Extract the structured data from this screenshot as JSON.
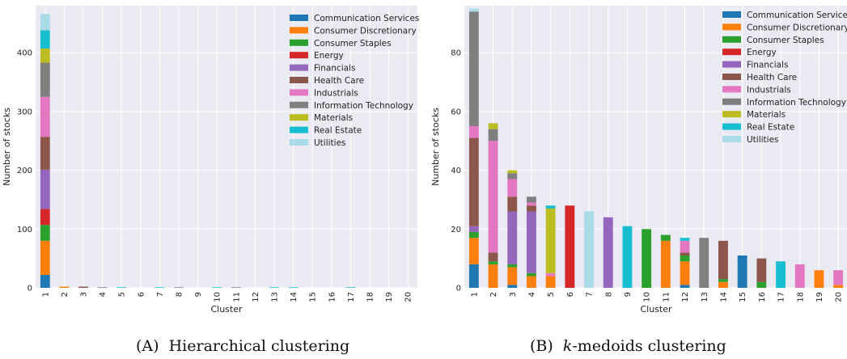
{
  "colors": {
    "Communication Services": "#1f77b4",
    "Consumer Discretionary": "#ff7f0e",
    "Consumer Staples": "#2ca02c",
    "Energy": "#d62728",
    "Financials": "#9467bd",
    "Health Care": "#8c564b",
    "Industrials": "#e377c2",
    "Information Technology": "#7f7f7f",
    "Materials": "#bcbd22",
    "Real Estate": "#17becf",
    "Utilities": "#aadbe9"
  },
  "captions": {
    "a_prefix": "(A)",
    "a_text": "Hierarchical clustering",
    "b_prefix": "(B)",
    "b_k": "k",
    "b_text": "-medoids clustering"
  },
  "chart_data": [
    {
      "type": "bar",
      "stacked": true,
      "xlabel": "Cluster",
      "ylabel": "Number of stocks",
      "ylim": [
        0,
        480
      ],
      "yticks": [
        0,
        100,
        200,
        300,
        400
      ],
      "grid": true,
      "legend_position": "top-right",
      "categories": [
        "1",
        "2",
        "3",
        "4",
        "5",
        "6",
        "7",
        "8",
        "9",
        "10",
        "11",
        "12",
        "13",
        "14",
        "15",
        "16",
        "17",
        "18",
        "19",
        "20"
      ],
      "series": [
        {
          "name": "Communication Services",
          "values": [
            22,
            0,
            0,
            0,
            0,
            0,
            0,
            0,
            0,
            0,
            0,
            0,
            0,
            0,
            0,
            0,
            0,
            0,
            0,
            0
          ]
        },
        {
          "name": "Consumer Discretionary",
          "values": [
            58,
            2,
            0,
            0,
            0,
            0,
            0,
            0,
            0,
            0,
            0,
            0,
            0,
            0,
            0,
            0,
            0,
            0,
            0,
            0
          ]
        },
        {
          "name": "Consumer Staples",
          "values": [
            27,
            0,
            0,
            0,
            0,
            0,
            0,
            0,
            0,
            0,
            0,
            0,
            0,
            0,
            0,
            0,
            0,
            0,
            0,
            0
          ]
        },
        {
          "name": "Energy",
          "values": [
            27,
            0,
            0,
            0,
            0,
            0,
            0,
            0,
            0,
            0,
            0,
            0,
            0,
            0,
            0,
            0,
            0,
            0,
            0,
            0
          ]
        },
        {
          "name": "Financials",
          "values": [
            67,
            0,
            0,
            0,
            0,
            0,
            0,
            0,
            0,
            0,
            0,
            0,
            0,
            0,
            0,
            0,
            0,
            0,
            0,
            0
          ]
        },
        {
          "name": "Health Care",
          "values": [
            56,
            0,
            2,
            0,
            0,
            0,
            0,
            0,
            0,
            0,
            0,
            0,
            0,
            0,
            0,
            0,
            0,
            0,
            0,
            0
          ]
        },
        {
          "name": "Industrials",
          "values": [
            68,
            0,
            0,
            0,
            0,
            0,
            0,
            0,
            0,
            0,
            0,
            0,
            0,
            0,
            0,
            0,
            0,
            0,
            0,
            0
          ]
        },
        {
          "name": "Information Technology",
          "values": [
            58,
            0,
            0,
            1,
            0,
            0,
            0,
            1,
            0,
            0,
            1,
            0,
            0,
            0,
            0,
            0,
            0,
            0,
            0,
            0
          ]
        },
        {
          "name": "Materials",
          "values": [
            24,
            0,
            0,
            0,
            0,
            0,
            0,
            0,
            0,
            0,
            0,
            0,
            0,
            0,
            0,
            0,
            0,
            0,
            0,
            0
          ]
        },
        {
          "name": "Real Estate",
          "values": [
            31,
            0,
            0,
            0,
            1,
            0,
            1,
            0,
            0,
            1,
            0,
            0,
            1,
            1,
            0,
            0,
            1,
            0,
            0,
            0
          ]
        },
        {
          "name": "Utilities",
          "values": [
            28,
            0,
            0,
            0,
            0,
            0,
            0,
            0,
            0,
            0,
            0,
            0,
            0,
            0,
            0,
            0,
            0,
            0,
            0,
            0
          ]
        }
      ]
    },
    {
      "type": "bar",
      "stacked": true,
      "xlabel": "Cluster",
      "ylabel": "Number of stocks",
      "ylim": [
        0,
        96
      ],
      "yticks": [
        0,
        20,
        40,
        60,
        80
      ],
      "grid": true,
      "legend_position": "top-right",
      "categories": [
        "1",
        "2",
        "3",
        "4",
        "5",
        "6",
        "7",
        "8",
        "9",
        "10",
        "11",
        "12",
        "13",
        "14",
        "15",
        "16",
        "17",
        "18",
        "19",
        "20"
      ],
      "series": [
        {
          "name": "Communication Services",
          "values": [
            8,
            0,
            1,
            0,
            0,
            0,
            0,
            0,
            0,
            0,
            0,
            1,
            0,
            0,
            11,
            0,
            0,
            0,
            0,
            0
          ]
        },
        {
          "name": "Consumer Discretionary",
          "values": [
            9,
            8,
            6,
            4,
            4,
            0,
            0,
            0,
            0,
            0,
            16,
            8,
            0,
            2,
            0,
            0,
            0,
            0,
            6,
            1
          ]
        },
        {
          "name": "Consumer Staples",
          "values": [
            2,
            1,
            1,
            1,
            0,
            0,
            0,
            0,
            0,
            20,
            2,
            2,
            0,
            1,
            0,
            2,
            0,
            0,
            0,
            0
          ]
        },
        {
          "name": "Energy",
          "values": [
            0,
            0,
            0,
            0,
            0,
            28,
            0,
            0,
            0,
            0,
            0,
            0,
            0,
            0,
            0,
            0,
            0,
            0,
            0,
            0
          ]
        },
        {
          "name": "Financials",
          "values": [
            2,
            0,
            18,
            21,
            0,
            0,
            0,
            24,
            0,
            0,
            0,
            0,
            0,
            0,
            0,
            0,
            0,
            0,
            0,
            0
          ]
        },
        {
          "name": "Health Care",
          "values": [
            30,
            3,
            5,
            2,
            0,
            0,
            0,
            0,
            0,
            0,
            0,
            1,
            0,
            13,
            0,
            8,
            0,
            0,
            0,
            0
          ]
        },
        {
          "name": "Industrials",
          "values": [
            4,
            38,
            6,
            1,
            1,
            0,
            0,
            0,
            0,
            0,
            0,
            4,
            0,
            0,
            0,
            0,
            0,
            8,
            0,
            5
          ]
        },
        {
          "name": "Information Technology",
          "values": [
            39,
            4,
            2,
            2,
            0,
            0,
            0,
            0,
            0,
            0,
            0,
            0,
            17,
            0,
            0,
            0,
            0,
            0,
            0,
            0
          ]
        },
        {
          "name": "Materials",
          "values": [
            0,
            2,
            1,
            0,
            22,
            0,
            0,
            0,
            0,
            0,
            0,
            0,
            0,
            0,
            0,
            0,
            0,
            0,
            0,
            0
          ]
        },
        {
          "name": "Real Estate",
          "values": [
            0,
            0,
            0,
            0,
            1,
            0,
            0,
            0,
            21,
            0,
            0,
            1,
            0,
            0,
            0,
            0,
            9,
            0,
            0,
            0
          ]
        },
        {
          "name": "Utilities",
          "values": [
            1,
            0,
            0,
            0,
            0,
            0,
            26,
            0,
            0,
            0,
            0,
            0,
            0,
            0,
            0,
            0,
            0,
            0,
            0,
            0
          ]
        }
      ]
    }
  ]
}
